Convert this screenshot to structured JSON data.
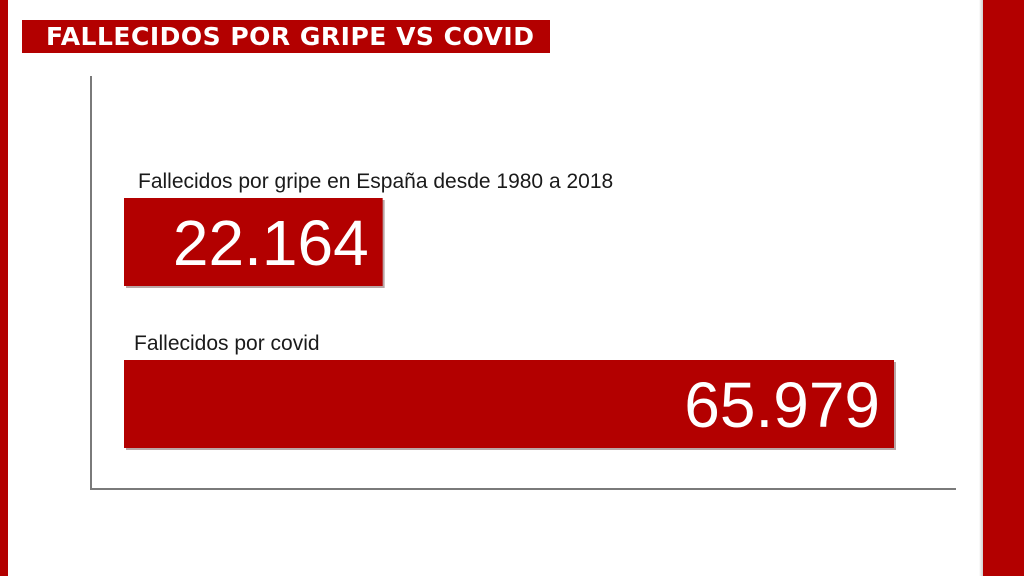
{
  "title": "FALLECIDOS POR GRIPE VS COVID",
  "colors": {
    "accent": "#b30000",
    "text": "#1a1a1a",
    "axis": "#7a7a7a",
    "value_text": "#ffffff"
  },
  "chart_data": {
    "type": "bar",
    "orientation": "horizontal",
    "categories": [
      "Fallecidos por gripe en España desde 1980 a 2018",
      "Fallecidos por covid"
    ],
    "values": [
      22164,
      65979
    ],
    "value_labels": [
      "22.164",
      "65.979"
    ],
    "title": "FALLECIDOS POR GRIPE VS COVID",
    "xlabel": "",
    "ylabel": "",
    "xlim": [
      0,
      65979
    ],
    "grid": false,
    "legend": "none"
  }
}
